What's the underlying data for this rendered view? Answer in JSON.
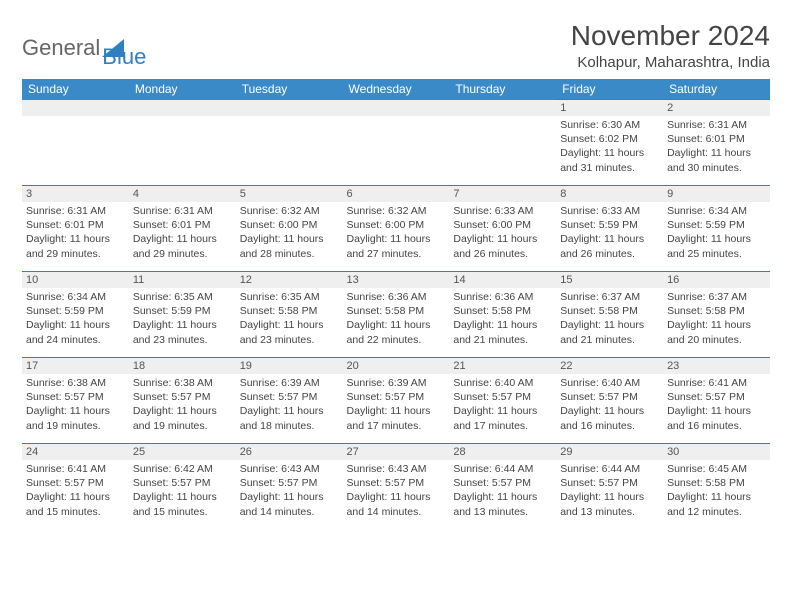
{
  "logo": {
    "text_general": "General",
    "text_blue": "Blue"
  },
  "header": {
    "month_title": "November 2024",
    "location": "Kolhapur, Maharashtra, India"
  },
  "colors": {
    "header_bg": "#3a8ac8",
    "row_border": "#2f7fc1",
    "daynum_bg": "#efefef",
    "text": "#444444"
  },
  "calendar": {
    "day_headers": [
      "Sunday",
      "Monday",
      "Tuesday",
      "Wednesday",
      "Thursday",
      "Friday",
      "Saturday"
    ],
    "weeks": [
      [
        null,
        null,
        null,
        null,
        null,
        {
          "n": "1",
          "sr": "Sunrise: 6:30 AM",
          "ss": "Sunset: 6:02 PM",
          "dl1": "Daylight: 11 hours",
          "dl2": "and 31 minutes."
        },
        {
          "n": "2",
          "sr": "Sunrise: 6:31 AM",
          "ss": "Sunset: 6:01 PM",
          "dl1": "Daylight: 11 hours",
          "dl2": "and 30 minutes."
        }
      ],
      [
        {
          "n": "3",
          "sr": "Sunrise: 6:31 AM",
          "ss": "Sunset: 6:01 PM",
          "dl1": "Daylight: 11 hours",
          "dl2": "and 29 minutes."
        },
        {
          "n": "4",
          "sr": "Sunrise: 6:31 AM",
          "ss": "Sunset: 6:01 PM",
          "dl1": "Daylight: 11 hours",
          "dl2": "and 29 minutes."
        },
        {
          "n": "5",
          "sr": "Sunrise: 6:32 AM",
          "ss": "Sunset: 6:00 PM",
          "dl1": "Daylight: 11 hours",
          "dl2": "and 28 minutes."
        },
        {
          "n": "6",
          "sr": "Sunrise: 6:32 AM",
          "ss": "Sunset: 6:00 PM",
          "dl1": "Daylight: 11 hours",
          "dl2": "and 27 minutes."
        },
        {
          "n": "7",
          "sr": "Sunrise: 6:33 AM",
          "ss": "Sunset: 6:00 PM",
          "dl1": "Daylight: 11 hours",
          "dl2": "and 26 minutes."
        },
        {
          "n": "8",
          "sr": "Sunrise: 6:33 AM",
          "ss": "Sunset: 5:59 PM",
          "dl1": "Daylight: 11 hours",
          "dl2": "and 26 minutes."
        },
        {
          "n": "9",
          "sr": "Sunrise: 6:34 AM",
          "ss": "Sunset: 5:59 PM",
          "dl1": "Daylight: 11 hours",
          "dl2": "and 25 minutes."
        }
      ],
      [
        {
          "n": "10",
          "sr": "Sunrise: 6:34 AM",
          "ss": "Sunset: 5:59 PM",
          "dl1": "Daylight: 11 hours",
          "dl2": "and 24 minutes."
        },
        {
          "n": "11",
          "sr": "Sunrise: 6:35 AM",
          "ss": "Sunset: 5:59 PM",
          "dl1": "Daylight: 11 hours",
          "dl2": "and 23 minutes."
        },
        {
          "n": "12",
          "sr": "Sunrise: 6:35 AM",
          "ss": "Sunset: 5:58 PM",
          "dl1": "Daylight: 11 hours",
          "dl2": "and 23 minutes."
        },
        {
          "n": "13",
          "sr": "Sunrise: 6:36 AM",
          "ss": "Sunset: 5:58 PM",
          "dl1": "Daylight: 11 hours",
          "dl2": "and 22 minutes."
        },
        {
          "n": "14",
          "sr": "Sunrise: 6:36 AM",
          "ss": "Sunset: 5:58 PM",
          "dl1": "Daylight: 11 hours",
          "dl2": "and 21 minutes."
        },
        {
          "n": "15",
          "sr": "Sunrise: 6:37 AM",
          "ss": "Sunset: 5:58 PM",
          "dl1": "Daylight: 11 hours",
          "dl2": "and 21 minutes."
        },
        {
          "n": "16",
          "sr": "Sunrise: 6:37 AM",
          "ss": "Sunset: 5:58 PM",
          "dl1": "Daylight: 11 hours",
          "dl2": "and 20 minutes."
        }
      ],
      [
        {
          "n": "17",
          "sr": "Sunrise: 6:38 AM",
          "ss": "Sunset: 5:57 PM",
          "dl1": "Daylight: 11 hours",
          "dl2": "and 19 minutes."
        },
        {
          "n": "18",
          "sr": "Sunrise: 6:38 AM",
          "ss": "Sunset: 5:57 PM",
          "dl1": "Daylight: 11 hours",
          "dl2": "and 19 minutes."
        },
        {
          "n": "19",
          "sr": "Sunrise: 6:39 AM",
          "ss": "Sunset: 5:57 PM",
          "dl1": "Daylight: 11 hours",
          "dl2": "and 18 minutes."
        },
        {
          "n": "20",
          "sr": "Sunrise: 6:39 AM",
          "ss": "Sunset: 5:57 PM",
          "dl1": "Daylight: 11 hours",
          "dl2": "and 17 minutes."
        },
        {
          "n": "21",
          "sr": "Sunrise: 6:40 AM",
          "ss": "Sunset: 5:57 PM",
          "dl1": "Daylight: 11 hours",
          "dl2": "and 17 minutes."
        },
        {
          "n": "22",
          "sr": "Sunrise: 6:40 AM",
          "ss": "Sunset: 5:57 PM",
          "dl1": "Daylight: 11 hours",
          "dl2": "and 16 minutes."
        },
        {
          "n": "23",
          "sr": "Sunrise: 6:41 AM",
          "ss": "Sunset: 5:57 PM",
          "dl1": "Daylight: 11 hours",
          "dl2": "and 16 minutes."
        }
      ],
      [
        {
          "n": "24",
          "sr": "Sunrise: 6:41 AM",
          "ss": "Sunset: 5:57 PM",
          "dl1": "Daylight: 11 hours",
          "dl2": "and 15 minutes."
        },
        {
          "n": "25",
          "sr": "Sunrise: 6:42 AM",
          "ss": "Sunset: 5:57 PM",
          "dl1": "Daylight: 11 hours",
          "dl2": "and 15 minutes."
        },
        {
          "n": "26",
          "sr": "Sunrise: 6:43 AM",
          "ss": "Sunset: 5:57 PM",
          "dl1": "Daylight: 11 hours",
          "dl2": "and 14 minutes."
        },
        {
          "n": "27",
          "sr": "Sunrise: 6:43 AM",
          "ss": "Sunset: 5:57 PM",
          "dl1": "Daylight: 11 hours",
          "dl2": "and 14 minutes."
        },
        {
          "n": "28",
          "sr": "Sunrise: 6:44 AM",
          "ss": "Sunset: 5:57 PM",
          "dl1": "Daylight: 11 hours",
          "dl2": "and 13 minutes."
        },
        {
          "n": "29",
          "sr": "Sunrise: 6:44 AM",
          "ss": "Sunset: 5:57 PM",
          "dl1": "Daylight: 11 hours",
          "dl2": "and 13 minutes."
        },
        {
          "n": "30",
          "sr": "Sunrise: 6:45 AM",
          "ss": "Sunset: 5:58 PM",
          "dl1": "Daylight: 11 hours",
          "dl2": "and 12 minutes."
        }
      ]
    ]
  }
}
